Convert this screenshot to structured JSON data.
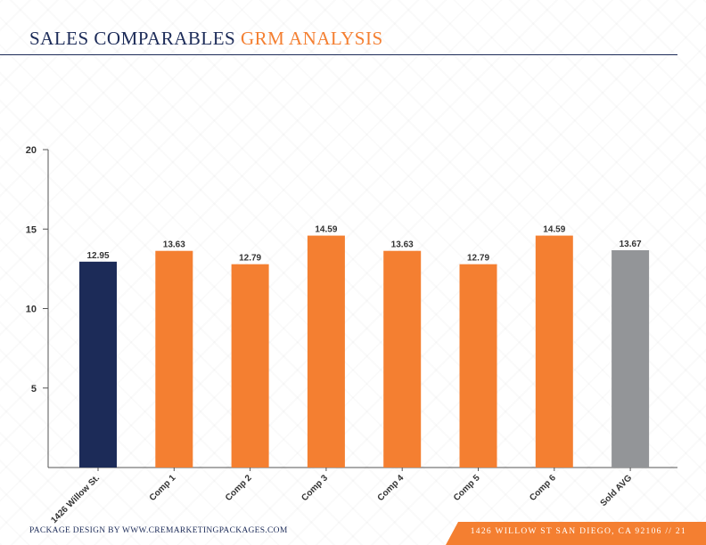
{
  "header": {
    "title_part1": "SALES COMPARABLES",
    "title_part2": "GRM ANALYSIS"
  },
  "footer": {
    "left": "PACKAGE DESIGN BY WWW.CREMARKETINGPACKAGES.COM",
    "right": "1426 WILLOW ST SAN DIEGO, CA 92106 // 21"
  },
  "colors": {
    "navy": "#1c2b58",
    "orange": "#f47f31",
    "gray": "#939598"
  },
  "chart_data": {
    "type": "bar",
    "title": "",
    "xlabel": "",
    "ylabel": "",
    "ylim": [
      0,
      20
    ],
    "yticks": [
      5,
      10,
      15,
      20
    ],
    "grid": false,
    "categories": [
      "1426 Willow St.",
      "Comp 1",
      "Comp 2",
      "Comp 3",
      "Comp 4",
      "Comp 5",
      "Comp 6",
      "Sold AVG"
    ],
    "values": [
      12.95,
      13.63,
      12.79,
      14.59,
      13.63,
      12.79,
      14.59,
      13.67
    ],
    "value_labels": [
      "12.95",
      "13.63",
      "12.79",
      "14.59",
      "13.63",
      "12.79",
      "14.59",
      "13.67"
    ],
    "bar_colors": [
      "#1c2b58",
      "#f47f31",
      "#f47f31",
      "#f47f31",
      "#f47f31",
      "#f47f31",
      "#f47f31",
      "#939598"
    ]
  }
}
